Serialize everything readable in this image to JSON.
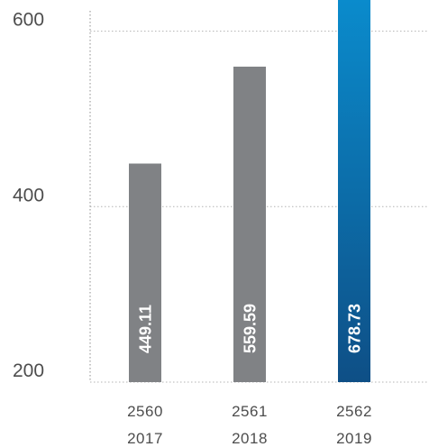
{
  "chart_data": {
    "type": "bar",
    "categories": [
      [
        "2560",
        "2017"
      ],
      [
        "2561",
        "2018"
      ],
      [
        "2562",
        "2019"
      ]
    ],
    "values": [
      449.11,
      559.59,
      678.73
    ],
    "data_labels": [
      "449.11",
      "559.59",
      "678.73"
    ],
    "yticks": [
      200,
      400,
      600
    ],
    "ytick_labels": [
      "200",
      "400",
      "600"
    ],
    "ylim": [
      200,
      622
    ],
    "grid": true,
    "colors": {
      "default_bar": "#808285",
      "highlight_top": "#0a91d3",
      "highlight_bottom": "#0e4f86",
      "grid": "#b3b3b3",
      "axis": "#8c8c8c",
      "text": "#4d4d4d"
    },
    "highlight_index": 2
  }
}
